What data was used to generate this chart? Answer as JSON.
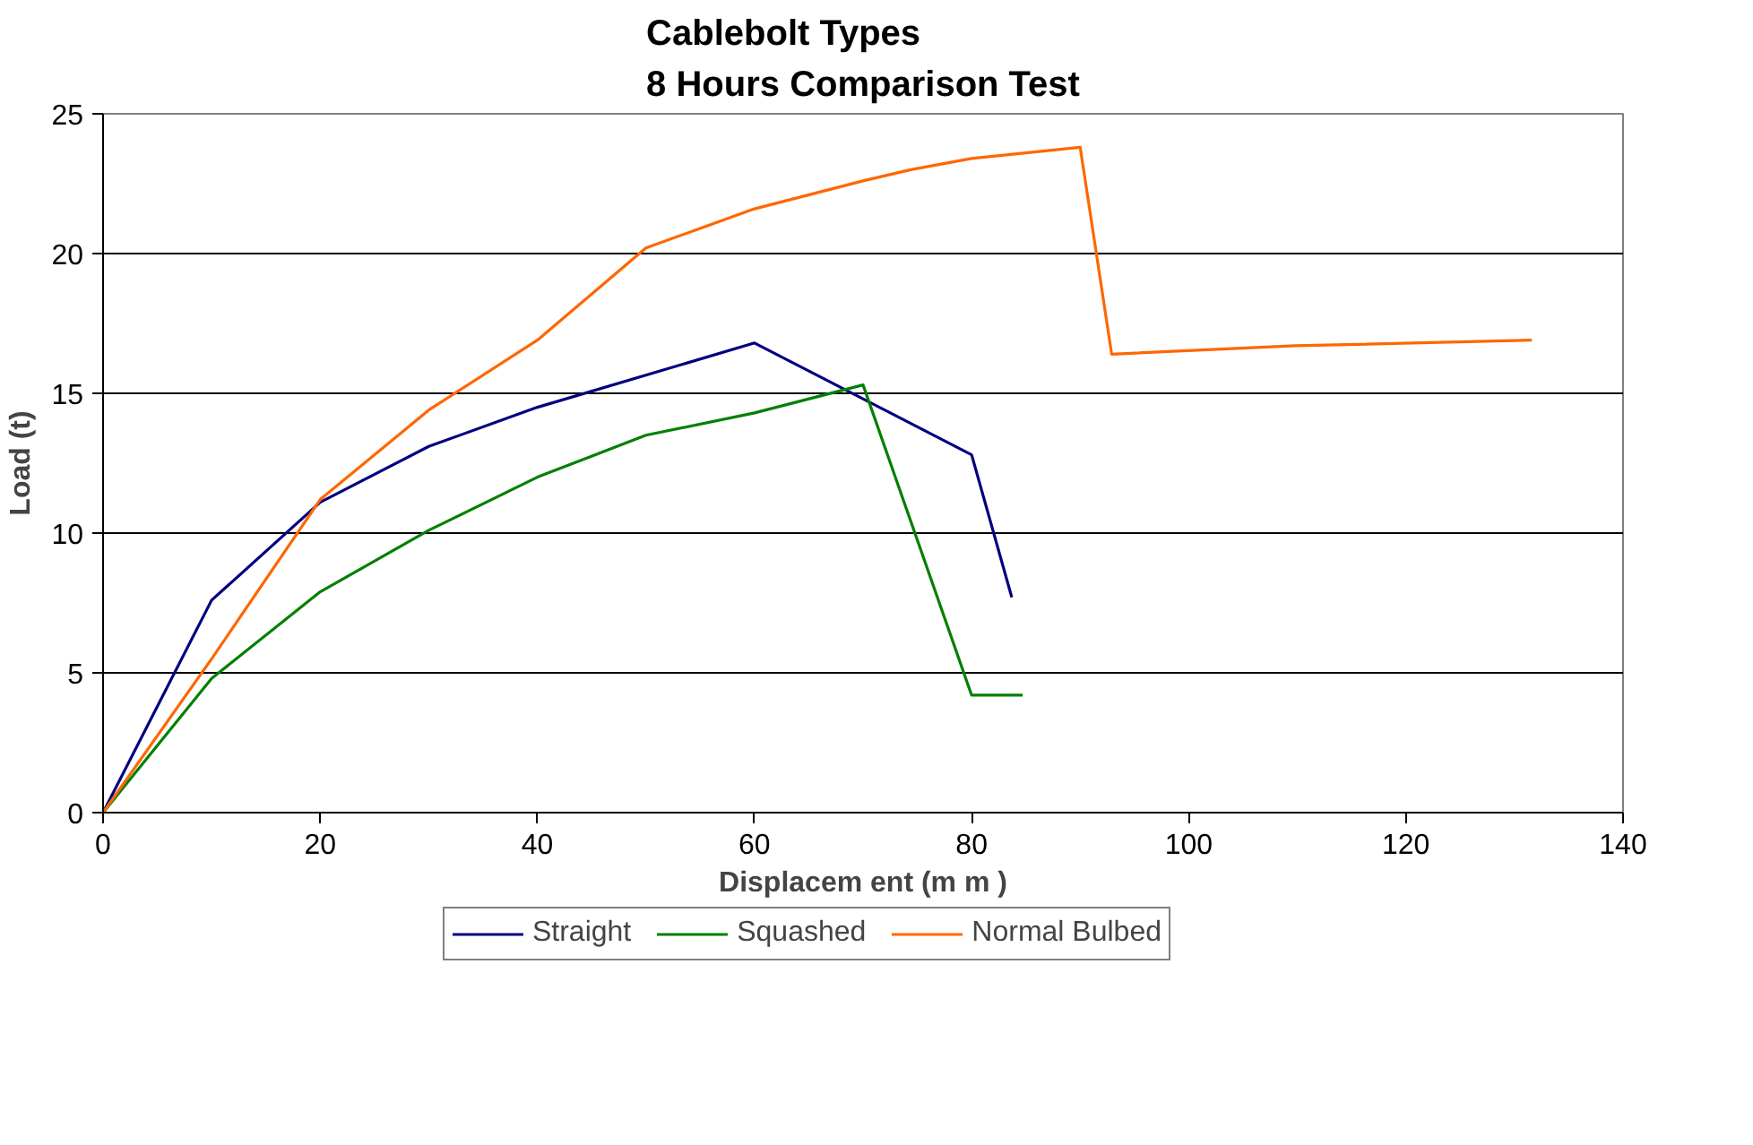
{
  "chart_data": {
    "type": "line",
    "title": "Cablebolt Types\n8 Hours Comparison Test",
    "xlabel": "Displacem ent (m m )",
    "ylabel": "Load (t)",
    "xlim": [
      0,
      140
    ],
    "xticks": [
      0,
      20,
      40,
      60,
      80,
      100,
      120,
      140
    ],
    "ylim": [
      0,
      25
    ],
    "yticks": [
      0,
      5,
      10,
      15,
      20,
      25
    ],
    "grid": "y",
    "legend": "bottom",
    "series": [
      {
        "name": "Straight",
        "color": "#000080",
        "x": [
          0,
          10,
          20,
          30,
          40,
          60,
          80,
          83.7
        ],
        "values": [
          0,
          7.6,
          11.1,
          13.1,
          14.5,
          16.8,
          12.8,
          7.7
        ]
      },
      {
        "name": "Squashed",
        "color": "#008000",
        "x": [
          0,
          10,
          20,
          30,
          40,
          50,
          60,
          70,
          80,
          84.7
        ],
        "values": [
          0,
          4.8,
          7.9,
          10.1,
          12.0,
          13.5,
          14.3,
          15.3,
          4.2,
          4.2
        ]
      },
      {
        "name": "Normal Bulbed",
        "color": "#ff6600",
        "x": [
          0,
          10,
          20,
          30,
          40,
          50,
          60,
          70,
          74.4,
          80,
          90,
          92.9,
          109.8,
          131.6
        ],
        "values": [
          0,
          5.5,
          11.2,
          14.4,
          16.9,
          20.2,
          21.6,
          22.6,
          23.0,
          23.4,
          23.8,
          16.4,
          16.7,
          16.9
        ]
      }
    ]
  }
}
